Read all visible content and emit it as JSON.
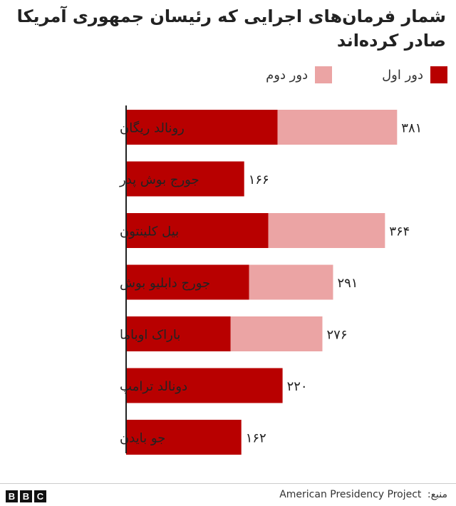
{
  "colors": {
    "first_term": "#b80000",
    "second_term": "#eba4a4",
    "axis": "#222222",
    "text": "#222222"
  },
  "chart_data": {
    "type": "bar",
    "orientation": "horizontal",
    "stacked": true,
    "title": "شمار فرمان‌های اجرایی که رئیسان جمهوری آمریکا صادر کرده‌اند",
    "categories": [
      "رونالد ریگان",
      "جورج بوش پدر",
      "بیل کلینتون",
      "جورج دابلیو بوش",
      "باراک اوباما",
      "دونالد ترامپ",
      "جو بایدن"
    ],
    "series": [
      {
        "name": "دور اول",
        "values": [
          213,
          166,
          200,
          173,
          147,
          220,
          162
        ]
      },
      {
        "name": "دور دوم",
        "values": [
          168,
          0,
          164,
          118,
          129,
          0,
          0
        ]
      }
    ],
    "totals": [
      381,
      166,
      364,
      291,
      276,
      220,
      162
    ],
    "total_labels": [
      "۳۸۱",
      "۱۶۶",
      "۳۶۴",
      "۲۹۱",
      "۲۷۶",
      "۲۲۰",
      "۱۶۲"
    ],
    "xlim": [
      0,
      390
    ],
    "legend_position": "top-right",
    "grid": false
  },
  "footer": {
    "logo_letters": [
      "B",
      "B",
      "C"
    ],
    "source_label": "منبع:",
    "source_value": "American Presidency Project"
  }
}
